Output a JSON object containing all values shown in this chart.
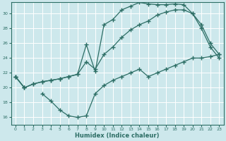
{
  "xlabel": "Humidex (Indice chaleur)",
  "ylabel": "",
  "background_color": "#cde8ec",
  "grid_color": "#ffffff",
  "line_color": "#2d6e65",
  "xlim": [
    -0.5,
    23.5
  ],
  "ylim": [
    15.0,
    31.5
  ],
  "xticks": [
    0,
    1,
    2,
    3,
    4,
    5,
    6,
    7,
    8,
    9,
    10,
    11,
    12,
    13,
    14,
    15,
    16,
    17,
    18,
    19,
    20,
    21,
    22,
    23
  ],
  "yticks": [
    16,
    18,
    20,
    22,
    24,
    26,
    28,
    30
  ],
  "series": [
    {
      "x": [
        0,
        1,
        2,
        3,
        4,
        5,
        6,
        7,
        8,
        9,
        10,
        11,
        12,
        13,
        14,
        15,
        16,
        17,
        18,
        19,
        20,
        21,
        22,
        23
      ],
      "y": [
        21.5,
        20.0,
        20.5,
        20.8,
        21.0,
        21.2,
        21.5,
        21.8,
        25.8,
        22.2,
        28.5,
        29.2,
        30.5,
        31.0,
        31.5,
        31.3,
        31.2,
        31.2,
        31.3,
        31.2,
        30.0,
        28.5,
        26.0,
        24.5
      ]
    },
    {
      "x": [
        0,
        1,
        2,
        3,
        4,
        5,
        6,
        7,
        8,
        9,
        10,
        11,
        12,
        13,
        14,
        15,
        16,
        17,
        18,
        19,
        20,
        21,
        22,
        23
      ],
      "y": [
        21.5,
        20.0,
        20.5,
        20.8,
        21.0,
        21.2,
        21.5,
        21.8,
        23.5,
        22.5,
        24.5,
        25.5,
        26.8,
        27.8,
        28.5,
        29.0,
        29.8,
        30.2,
        30.5,
        30.5,
        30.0,
        28.0,
        25.5,
        24.0
      ]
    },
    {
      "x": [
        0,
        1,
        2,
        3,
        4,
        5,
        6,
        7,
        8,
        9,
        10,
        11,
        12,
        13,
        14,
        15,
        16,
        17,
        18,
        19,
        20,
        21,
        22,
        23
      ],
      "y": [
        21.5,
        20.0,
        null,
        19.2,
        18.2,
        17.0,
        16.2,
        16.0,
        16.2,
        19.2,
        20.3,
        21.0,
        21.5,
        22.0,
        22.5,
        21.5,
        22.0,
        22.5,
        23.0,
        23.5,
        24.0,
        24.0,
        24.2,
        24.5
      ]
    }
  ]
}
